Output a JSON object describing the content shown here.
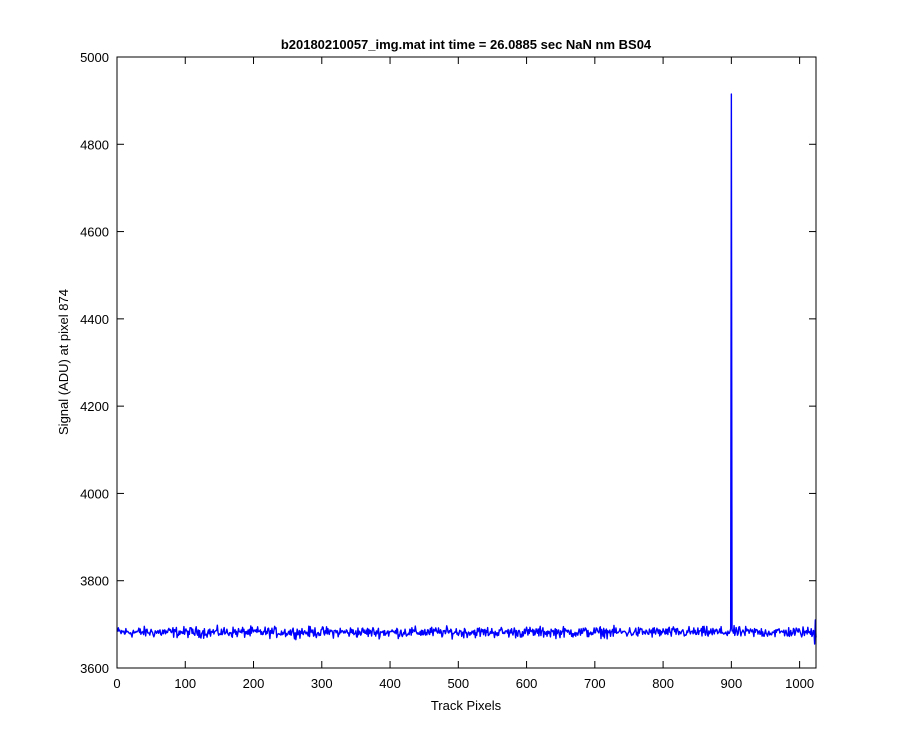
{
  "chart_data": {
    "type": "line",
    "title": "b20180210057_img.mat int time = 26.0885 sec  NaN nm BS04",
    "xlabel": "Track Pixels",
    "ylabel": "Signal (ADU) at pixel 874",
    "xlim": [
      0,
      1024
    ],
    "ylim": [
      3600,
      5000
    ],
    "x_ticks": [
      0,
      100,
      200,
      300,
      400,
      500,
      600,
      700,
      800,
      900,
      1000
    ],
    "y_ticks": [
      3600,
      3800,
      4000,
      4200,
      4400,
      4600,
      4800,
      5000
    ],
    "x_tick_labels": [
      "0",
      "100",
      "200",
      "300",
      "400",
      "500",
      "600",
      "700",
      "800",
      "900",
      "1000"
    ],
    "y_tick_labels": [
      "3600",
      "3800",
      "4000",
      "4200",
      "4400",
      "4600",
      "4800",
      "5000"
    ],
    "grid": false,
    "line_color": "#0000ff",
    "series": [
      {
        "baseline": 3682,
        "noise_amplitude": 10,
        "x_start": 1,
        "x_end": 1024,
        "spike_points": [
          {
            "x": 899,
            "y": 3690
          },
          {
            "x": 900,
            "y": 4915
          },
          {
            "x": 901,
            "y": 3685
          }
        ],
        "end_points": [
          {
            "x": 1022,
            "y": 3655
          },
          {
            "x": 1023,
            "y": 3710
          }
        ]
      }
    ]
  }
}
